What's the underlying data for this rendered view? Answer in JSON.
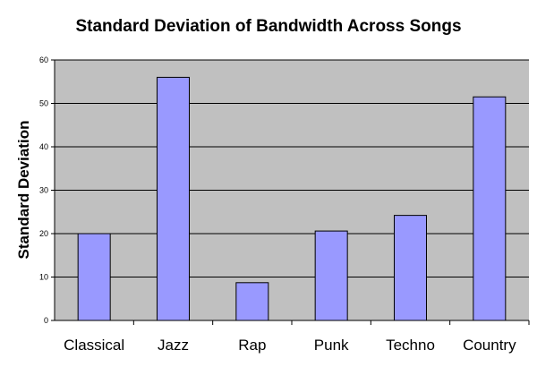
{
  "chart_data": {
    "type": "bar",
    "title": "Standard Deviation of Bandwidth Across Songs",
    "xlabel": "",
    "ylabel": "Standard Deviation",
    "categories": [
      "Classical",
      "Jazz",
      "Rap",
      "Punk",
      "Techno",
      "Country"
    ],
    "values": [
      20,
      56,
      8.7,
      20.6,
      24.2,
      51.5
    ],
    "ylim": [
      0,
      60
    ],
    "yticks": [
      "0",
      "10",
      "20",
      "30",
      "40",
      "50",
      "60"
    ],
    "grid": true,
    "legend": "none",
    "colors": {
      "plot_background": "#C0C0C0",
      "bar_fill": "#9999FF",
      "bar_stroke": "#000000",
      "gridline": "#000000"
    }
  }
}
